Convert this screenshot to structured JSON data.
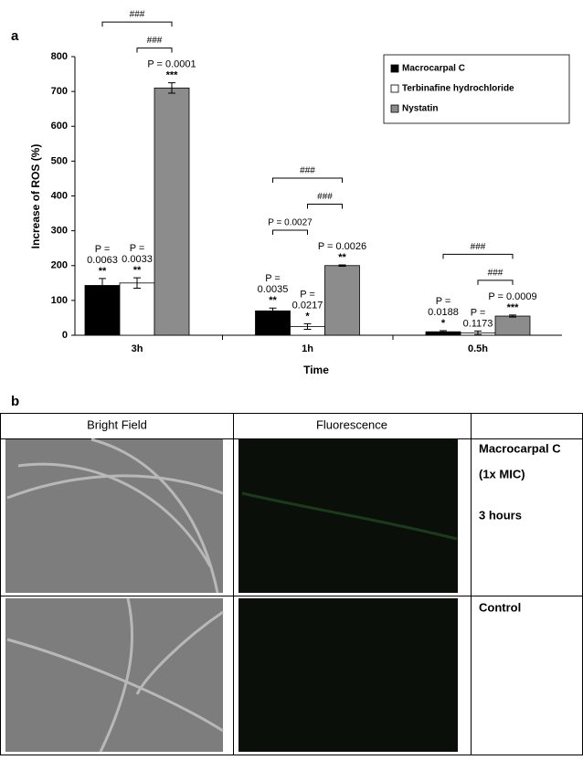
{
  "panel_labels": [
    "a",
    "b"
  ],
  "chart_data": {
    "type": "bar",
    "ylabel": "Increase of ROS (%)",
    "xlabel": "Time",
    "categories": [
      "3h",
      "1h",
      "0.5h"
    ],
    "ylim": [
      0,
      800
    ],
    "yticks": [
      0,
      100,
      200,
      300,
      400,
      500,
      600,
      700,
      800
    ],
    "legend": "top-right",
    "series": [
      {
        "name": "Macrocarpal C",
        "color": "#000000",
        "values": [
          143,
          70,
          10
        ],
        "errors": [
          20,
          8,
          3
        ],
        "annotations": [
          [
            "P =",
            "0.0063",
            "**"
          ],
          [
            "P =",
            "0.0035",
            "**"
          ],
          [
            "P =",
            "0.0188",
            "*"
          ]
        ]
      },
      {
        "name": "Terbinafine hydrochloride",
        "color": "#ffffff",
        "values": [
          150,
          25,
          7
        ],
        "errors": [
          15,
          8,
          5
        ],
        "annotations": [
          [
            "P =",
            "0.0033",
            "**"
          ],
          [
            "P =",
            "0.0217",
            "*"
          ],
          [
            "P =",
            "0.1173"
          ]
        ]
      },
      {
        "name": "Nystatin",
        "color": "#8c8c8c",
        "values": [
          710,
          200,
          55
        ],
        "errors": [
          15,
          2,
          3
        ],
        "annotations": [
          [
            "P = 0.0001",
            "***"
          ],
          [
            "P = 0.0026",
            "**"
          ],
          [
            "P = 0.0009",
            "***"
          ]
        ]
      }
    ],
    "brackets": [
      {
        "category": 0,
        "from": 1,
        "to": 2,
        "label": "###"
      },
      {
        "category": 0,
        "from": 0,
        "to": 2,
        "label": "###"
      },
      {
        "category": 1,
        "from": 0,
        "to": 1,
        "label": "P = 0.0027"
      },
      {
        "category": 1,
        "from": 1,
        "to": 2,
        "label": "###"
      },
      {
        "category": 1,
        "from": 0,
        "to": 2,
        "label": "###"
      },
      {
        "category": 2,
        "from": 1,
        "to": 2,
        "label": "###"
      },
      {
        "category": 2,
        "from": 0,
        "to": 2,
        "label": "###"
      }
    ]
  },
  "table": {
    "header": [
      "Bright Field",
      "Fluorescence",
      ""
    ],
    "rows": [
      [
        "Macrocarpal C",
        "(1x MIC)",
        "3 hours"
      ],
      [
        "Control"
      ]
    ]
  }
}
